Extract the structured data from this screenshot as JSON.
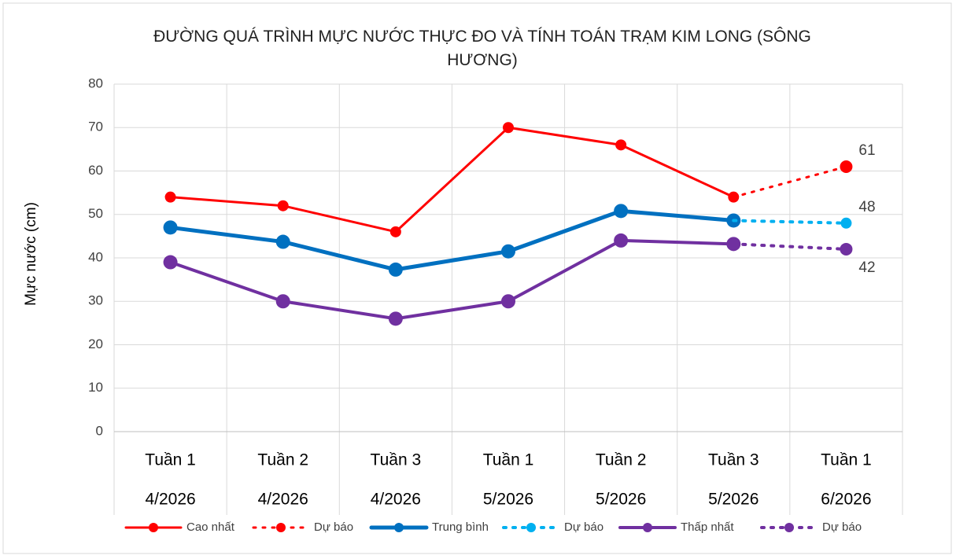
{
  "chart_data": {
    "type": "line",
    "title": "ĐƯỜNG QUÁ TRÌNH MỰC NƯỚC THỰC ĐO VÀ TÍNH TOÁN TRẠM KIM LONG (SÔNG HƯƠNG)",
    "y_label": "Mực nước (cm)",
    "categories": [
      [
        "Tuần 1",
        "4/2026"
      ],
      [
        "Tuần 2",
        "4/2026"
      ],
      [
        "Tuần 3",
        "4/2026"
      ],
      [
        "Tuần 1",
        "5/2026"
      ],
      [
        "Tuần 2",
        "5/2026"
      ],
      [
        "Tuần 3",
        "5/2026"
      ],
      [
        "Tuần 1",
        "6/2026"
      ]
    ],
    "series": [
      {
        "name": "Cao nhất",
        "color": "#ff0000",
        "dash": "solid",
        "width": 3,
        "marker": 7,
        "values": [
          54,
          52,
          46,
          70,
          66,
          54,
          null
        ]
      },
      {
        "name": "Dự báo",
        "color": "#ff0000",
        "dash": "dotted",
        "width": 3,
        "marker": 8,
        "values": [
          null,
          null,
          null,
          null,
          null,
          54,
          61
        ],
        "show_last_label": true
      },
      {
        "name": "Trung bình",
        "color": "#0070c0",
        "dash": "solid",
        "width": 5,
        "marker": 9,
        "values": [
          47,
          43.7,
          37.3,
          41.5,
          50.8,
          48.6,
          null
        ]
      },
      {
        "name": "Dự báo",
        "color": "#00b0f0",
        "dash": "dotted",
        "width": 4,
        "marker": 7,
        "values": [
          null,
          null,
          null,
          null,
          null,
          48.6,
          48
        ],
        "show_last_label": true
      },
      {
        "name": "Thấp nhất",
        "color": "#7030a0",
        "dash": "solid",
        "width": 4,
        "marker": 9,
        "values": [
          39,
          30,
          26,
          30,
          44,
          43.2,
          null
        ]
      },
      {
        "name": "Dự báo",
        "color": "#7030a0",
        "dash": "dotted",
        "width": 4,
        "marker": 8,
        "values": [
          null,
          null,
          null,
          null,
          null,
          43.2,
          42
        ],
        "show_last_label": true
      }
    ],
    "ylim": [
      0,
      80
    ],
    "yticks": [
      0,
      10,
      20,
      30,
      40,
      50,
      60,
      70,
      80
    ],
    "grid": true,
    "legend": "bottom"
  }
}
